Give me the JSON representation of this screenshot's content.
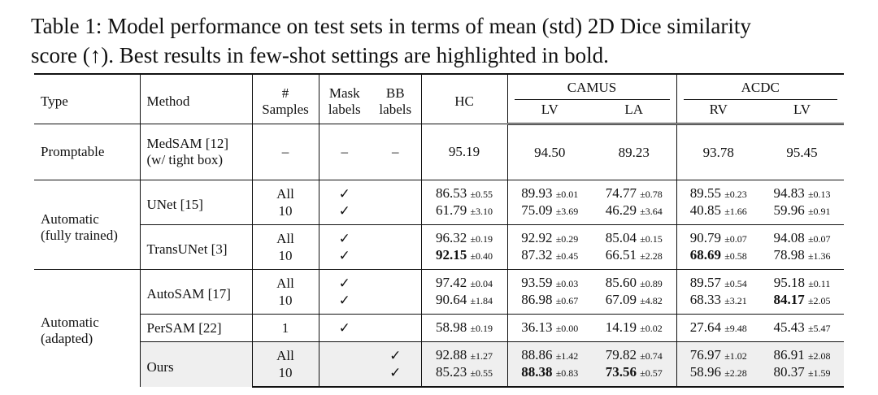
{
  "caption": [
    "Table 1: Model performance on test sets in terms of mean (std) 2D Dice similarity",
    "score (↑). Best results in few-shot settings are highlighted in bold."
  ],
  "header": {
    "type": "Type",
    "method": "Method",
    "samples": [
      "#",
      "Samples"
    ],
    "mask": [
      "Mask",
      "labels"
    ],
    "bb": [
      "BB",
      "labels"
    ],
    "hc": "HC",
    "camus": "CAMUS",
    "acdc": "ACDC",
    "sub": [
      "LV",
      "LA",
      "RV",
      "LV"
    ]
  },
  "groups": [
    {
      "type": [
        "Promptable"
      ],
      "methods": [
        {
          "name": [
            "MedSAM [12]",
            "(w/ tight box)"
          ],
          "rows": [
            {
              "samples": "–",
              "mask": "–",
              "bb": "–",
              "cells": [
                {
                  "mean": "95.19"
                },
                {
                  "mean": "94.50"
                },
                {
                  "mean": "89.23"
                },
                {
                  "mean": "93.78"
                },
                {
                  "mean": "95.45"
                }
              ]
            }
          ]
        }
      ]
    },
    {
      "type": [
        "Automatic",
        "(fully trained)"
      ],
      "methods": [
        {
          "name": [
            "UNet [15]"
          ],
          "rows": [
            {
              "samples": "All",
              "mask": "✓",
              "cells": [
                {
                  "mean": "86.53",
                  "std": "±0.55"
                },
                {
                  "mean": "89.93",
                  "std": "±0.01"
                },
                {
                  "mean": "74.77",
                  "std": "±0.78"
                },
                {
                  "mean": "89.55",
                  "std": "±0.23"
                },
                {
                  "mean": "94.83",
                  "std": "±0.13"
                }
              ]
            },
            {
              "samples": "10",
              "mask": "✓",
              "cells": [
                {
                  "mean": "61.79",
                  "std": "±3.10"
                },
                {
                  "mean": "75.09",
                  "std": "±3.69"
                },
                {
                  "mean": "46.29",
                  "std": "±3.64"
                },
                {
                  "mean": "40.85",
                  "std": "±1.66"
                },
                {
                  "mean": "59.96",
                  "std": "±0.91"
                }
              ]
            }
          ]
        },
        {
          "name": [
            "TransUNet [3]"
          ],
          "rows": [
            {
              "samples": "All",
              "mask": "✓",
              "cells": [
                {
                  "mean": "96.32",
                  "std": "±0.19"
                },
                {
                  "mean": "92.92",
                  "std": "±0.29"
                },
                {
                  "mean": "85.04",
                  "std": "±0.15"
                },
                {
                  "mean": "90.79",
                  "std": "±0.07"
                },
                {
                  "mean": "94.08",
                  "std": "±0.07"
                }
              ]
            },
            {
              "samples": "10",
              "mask": "✓",
              "cells": [
                {
                  "mean": "92.15",
                  "std": "±0.40",
                  "bold": true
                },
                {
                  "mean": "87.32",
                  "std": "±0.45"
                },
                {
                  "mean": "66.51",
                  "std": "±2.28"
                },
                {
                  "mean": "68.69",
                  "std": "±0.58",
                  "bold": true
                },
                {
                  "mean": "78.98",
                  "std": "±1.36"
                }
              ]
            }
          ]
        }
      ]
    },
    {
      "type": [
        "Automatic",
        "(adapted)"
      ],
      "methods": [
        {
          "name": [
            "AutoSAM [17]"
          ],
          "rows": [
            {
              "samples": "All",
              "mask": "✓",
              "cells": [
                {
                  "mean": "97.42",
                  "std": "±0.04"
                },
                {
                  "mean": "93.59",
                  "std": "±0.03"
                },
                {
                  "mean": "85.60",
                  "std": "±0.89"
                },
                {
                  "mean": "89.57",
                  "std": "±0.54"
                },
                {
                  "mean": "95.18",
                  "std": "±0.11"
                }
              ]
            },
            {
              "samples": "10",
              "mask": "✓",
              "cells": [
                {
                  "mean": "90.64",
                  "std": "±1.84"
                },
                {
                  "mean": "86.98",
                  "std": "±0.67"
                },
                {
                  "mean": "67.09",
                  "std": "±4.82"
                },
                {
                  "mean": "68.33",
                  "std": "±3.21"
                },
                {
                  "mean": "84.17",
                  "std": "±2.05",
                  "bold": true
                }
              ]
            }
          ]
        },
        {
          "name": [
            "PerSAM [22]"
          ],
          "rows": [
            {
              "samples": "1",
              "mask": "✓",
              "cells": [
                {
                  "mean": "58.98",
                  "std": "±0.19"
                },
                {
                  "mean": "36.13",
                  "std": "±0.00"
                },
                {
                  "mean": "14.19",
                  "std": "±0.02"
                },
                {
                  "mean": "27.64",
                  "std": "±9.48"
                },
                {
                  "mean": "45.43",
                  "std": "±5.47"
                }
              ]
            }
          ]
        },
        {
          "name": [
            "Ours"
          ],
          "highlight": true,
          "rows": [
            {
              "samples": "All",
              "bb": "✓",
              "cells": [
                {
                  "mean": "92.88",
                  "std": "±1.27"
                },
                {
                  "mean": "88.86",
                  "std": "±1.42"
                },
                {
                  "mean": "79.82",
                  "std": "±0.74"
                },
                {
                  "mean": "76.97",
                  "std": "±1.02"
                },
                {
                  "mean": "86.91",
                  "std": "±2.08"
                }
              ]
            },
            {
              "samples": "10",
              "bb": "✓",
              "cells": [
                {
                  "mean": "85.23",
                  "std": "±0.55"
                },
                {
                  "mean": "88.38",
                  "std": "±0.83",
                  "bold": true
                },
                {
                  "mean": "73.56",
                  "std": "±0.57",
                  "bold": true
                },
                {
                  "mean": "58.96",
                  "std": "±2.28"
                },
                {
                  "mean": "80.37",
                  "std": "±1.59"
                }
              ]
            }
          ]
        }
      ]
    }
  ]
}
